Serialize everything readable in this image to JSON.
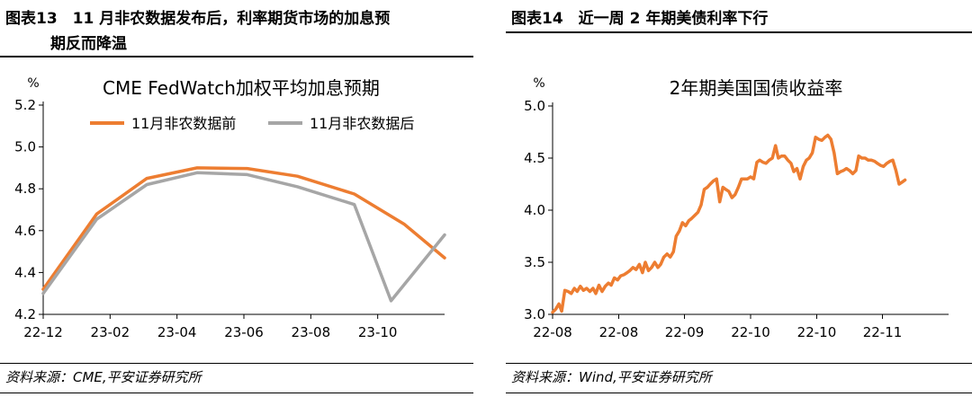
{
  "left": {
    "header_line1": "图表13　11 月非农数据发布后，利率期货市场的加息预",
    "header_line2": "期反而降温",
    "source": "资料来源：CME,平安证券研究所"
  },
  "right": {
    "header_line1": "图表14　近一周 2 年期美债利率下行",
    "source": "资料来源：Wind,平安证券研究所"
  },
  "colors": {
    "orange": "#ED7D31",
    "gray": "#A6A6A6"
  },
  "chart_data": [
    {
      "type": "line",
      "title": "CME FedWatch加权平均加息预期",
      "ylabel": "%",
      "ylim": [
        4.2,
        5.2
      ],
      "yticks": [
        "4.2",
        "4.4",
        "4.6",
        "4.8",
        "5.0",
        "5.2"
      ],
      "xlim": [
        0,
        12
      ],
      "xticks": [
        {
          "x": 0,
          "label": "22-12"
        },
        {
          "x": 2,
          "label": "23-02"
        },
        {
          "x": 4,
          "label": "23-04"
        },
        {
          "x": 6,
          "label": "23-06"
        },
        {
          "x": 8,
          "label": "23-08"
        },
        {
          "x": 10,
          "label": "23-10"
        }
      ],
      "legend": "top",
      "series": [
        {
          "name": "11月非农数据前",
          "color": "#ED7D31",
          "points": [
            [
              0,
              4.32
            ],
            [
              1.6,
              4.68
            ],
            [
              3.1,
              4.85
            ],
            [
              4.6,
              4.9
            ],
            [
              6.1,
              4.897
            ],
            [
              7.6,
              4.86
            ],
            [
              9.3,
              4.775
            ],
            [
              10.8,
              4.63
            ],
            [
              12,
              4.47
            ]
          ]
        },
        {
          "name": "11月非农数据后",
          "color": "#A6A6A6",
          "points": [
            [
              0,
              4.3
            ],
            [
              1.6,
              4.655
            ],
            [
              3.1,
              4.82
            ],
            [
              4.6,
              4.877
            ],
            [
              6.1,
              4.868
            ],
            [
              7.6,
              4.81
            ],
            [
              9.3,
              4.725
            ],
            [
              10.4,
              4.265
            ],
            [
              12,
              4.58
            ]
          ]
        }
      ]
    },
    {
      "type": "line",
      "title": "2年期美国国债收益率",
      "ylabel": "%",
      "ylim": [
        3.0,
        5.0
      ],
      "yticks": [
        "3.0",
        "3.5",
        "4.0",
        "4.5",
        "5.0"
      ],
      "xlim": [
        0,
        100
      ],
      "xticks": [
        {
          "x": 0,
          "label": "22-08"
        },
        {
          "x": 16.7,
          "label": "22-08"
        },
        {
          "x": 33.3,
          "label": "22-09"
        },
        {
          "x": 50,
          "label": "22-10"
        },
        {
          "x": 66.7,
          "label": "22-10"
        },
        {
          "x": 83.3,
          "label": "22-11"
        }
      ],
      "series": [
        {
          "color": "#ED7D31",
          "points": [
            [
              0,
              3.02
            ],
            [
              0.8,
              3.05
            ],
            [
              1.6,
              3.1
            ],
            [
              2.3,
              3.03
            ],
            [
              3.1,
              3.23
            ],
            [
              3.9,
              3.22
            ],
            [
              4.7,
              3.2
            ],
            [
              5.5,
              3.25
            ],
            [
              6.2,
              3.22
            ],
            [
              7,
              3.27
            ],
            [
              7.8,
              3.23
            ],
            [
              8.6,
              3.25
            ],
            [
              9.4,
              3.22
            ],
            [
              10.2,
              3.25
            ],
            [
              10.9,
              3.2
            ],
            [
              11.7,
              3.28
            ],
            [
              12.5,
              3.22
            ],
            [
              13.3,
              3.27
            ],
            [
              14.1,
              3.3
            ],
            [
              14.8,
              3.28
            ],
            [
              15.6,
              3.35
            ],
            [
              16.4,
              3.33
            ],
            [
              17.2,
              3.37
            ],
            [
              18,
              3.38
            ],
            [
              18.8,
              3.4
            ],
            [
              19.5,
              3.42
            ],
            [
              20.3,
              3.45
            ],
            [
              21.1,
              3.43
            ],
            [
              21.9,
              3.48
            ],
            [
              22.7,
              3.4
            ],
            [
              23.4,
              3.5
            ],
            [
              24.2,
              3.42
            ],
            [
              25,
              3.45
            ],
            [
              25.8,
              3.5
            ],
            [
              26.6,
              3.45
            ],
            [
              27.3,
              3.48
            ],
            [
              28.1,
              3.55
            ],
            [
              28.9,
              3.58
            ],
            [
              29.7,
              3.55
            ],
            [
              30.5,
              3.6
            ],
            [
              31.2,
              3.75
            ],
            [
              32,
              3.8
            ],
            [
              32.8,
              3.88
            ],
            [
              33.6,
              3.85
            ],
            [
              34.4,
              3.9
            ],
            [
              35.1,
              3.92
            ],
            [
              35.9,
              3.95
            ],
            [
              36.7,
              3.98
            ],
            [
              37.5,
              4.05
            ],
            [
              38.3,
              4.2
            ],
            [
              39.1,
              4.22
            ],
            [
              39.8,
              4.25
            ],
            [
              40.6,
              4.28
            ],
            [
              41.4,
              4.3
            ],
            [
              42.2,
              4.08
            ],
            [
              43,
              4.22
            ],
            [
              43.7,
              4.2
            ],
            [
              44.5,
              4.18
            ],
            [
              45.3,
              4.12
            ],
            [
              46.1,
              4.15
            ],
            [
              46.9,
              4.22
            ],
            [
              47.7,
              4.3
            ],
            [
              48.4,
              4.3
            ],
            [
              49.2,
              4.3
            ],
            [
              50,
              4.32
            ],
            [
              50.8,
              4.3
            ],
            [
              51.6,
              4.46
            ],
            [
              52.3,
              4.48
            ],
            [
              53.1,
              4.46
            ],
            [
              53.9,
              4.45
            ],
            [
              54.7,
              4.48
            ],
            [
              55.5,
              4.5
            ],
            [
              56.3,
              4.62
            ],
            [
              57,
              4.5
            ],
            [
              57.8,
              4.52
            ],
            [
              58.6,
              4.52
            ],
            [
              59.4,
              4.48
            ],
            [
              60.2,
              4.45
            ],
            [
              60.9,
              4.37
            ],
            [
              61.7,
              4.4
            ],
            [
              62.5,
              4.3
            ],
            [
              63.3,
              4.42
            ],
            [
              64.1,
              4.48
            ],
            [
              64.8,
              4.5
            ],
            [
              65.6,
              4.55
            ],
            [
              66.4,
              4.7
            ],
            [
              67.2,
              4.68
            ],
            [
              68,
              4.67
            ],
            [
              68.8,
              4.7
            ],
            [
              69.5,
              4.72
            ],
            [
              70.3,
              4.68
            ],
            [
              71.1,
              4.55
            ],
            [
              71.9,
              4.35
            ],
            [
              72.7,
              4.37
            ],
            [
              73.4,
              4.38
            ],
            [
              74.2,
              4.4
            ],
            [
              75,
              4.38
            ],
            [
              75.8,
              4.35
            ],
            [
              76.6,
              4.38
            ],
            [
              77.3,
              4.52
            ],
            [
              78.1,
              4.5
            ],
            [
              78.9,
              4.5
            ],
            [
              79.7,
              4.48
            ],
            [
              80.5,
              4.48
            ],
            [
              81.3,
              4.47
            ],
            [
              82,
              4.45
            ],
            [
              82.8,
              4.43
            ],
            [
              83.6,
              4.42
            ],
            [
              84.4,
              4.45
            ],
            [
              85.2,
              4.47
            ],
            [
              85.9,
              4.48
            ],
            [
              86.7,
              4.38
            ],
            [
              87.5,
              4.25
            ],
            [
              88.3,
              4.27
            ],
            [
              89,
              4.29
            ]
          ]
        }
      ]
    }
  ]
}
